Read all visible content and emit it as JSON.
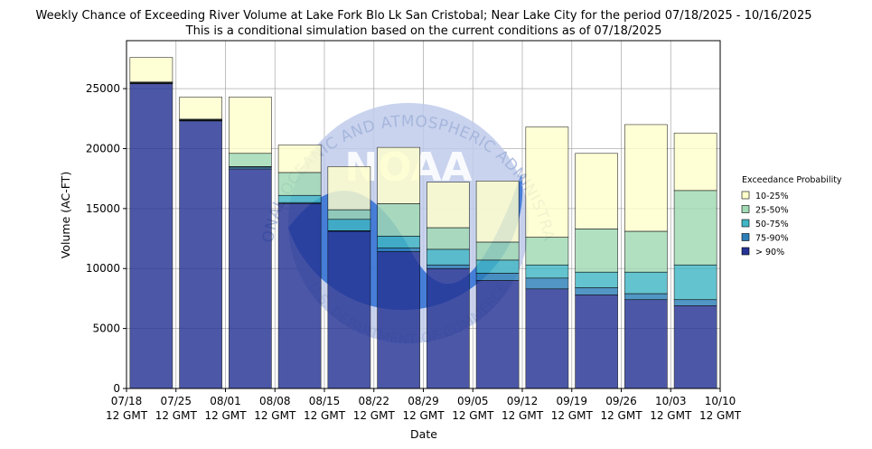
{
  "chart_data": {
    "type": "bar",
    "title": "Weekly Chance of Exceeding River Volume at Lake Fork Blo Lk San Cristobal; Near Lake City for the period 07/18/2025 - 10/16/2025",
    "subtitle": "This is a conditional simulation based on the current conditions as of 07/18/2025",
    "xlabel": "Date",
    "ylabel": "Volume (AC-FT)",
    "ylim": [
      0,
      29000
    ],
    "yticks": [
      0,
      5000,
      10000,
      15000,
      20000,
      25000
    ],
    "xticks": [
      {
        "date": "07/18",
        "time": "12 GMT"
      },
      {
        "date": "07/25",
        "time": "12 GMT"
      },
      {
        "date": "08/01",
        "time": "12 GMT"
      },
      {
        "date": "08/08",
        "time": "12 GMT"
      },
      {
        "date": "08/15",
        "time": "12 GMT"
      },
      {
        "date": "08/22",
        "time": "12 GMT"
      },
      {
        "date": "08/29",
        "time": "12 GMT"
      },
      {
        "date": "09/05",
        "time": "12 GMT"
      },
      {
        "date": "09/12",
        "time": "12 GMT"
      },
      {
        "date": "09/19",
        "time": "12 GMT"
      },
      {
        "date": "09/26",
        "time": "12 GMT"
      },
      {
        "date": "10/03",
        "time": "12 GMT"
      },
      {
        "date": "10/10",
        "time": "12 GMT"
      }
    ],
    "grid": true,
    "legend_placement": "right",
    "legend_title": "Exceedance Probability",
    "series": [
      {
        "name": "> 90%",
        "color": "#253494",
        "values": [
          25400,
          22300,
          18300,
          15400,
          13100,
          11400,
          10000,
          9000,
          8300,
          7800,
          7400,
          6900
        ]
      },
      {
        "name": "75-90%",
        "color": "#2c7fb8",
        "values": [
          25450,
          22350,
          18450,
          15500,
          13150,
          11700,
          10300,
          9600,
          9200,
          8400,
          7900,
          7400
        ]
      },
      {
        "name": "50-75%",
        "color": "#41b6c4",
        "values": [
          25500,
          22400,
          18500,
          16100,
          14100,
          12700,
          11600,
          10700,
          10300,
          9700,
          9700,
          10300
        ]
      },
      {
        "name": "25-50%",
        "color": "#a1dab4",
        "values": [
          25550,
          22450,
          19600,
          18000,
          14900,
          15400,
          13400,
          12200,
          12600,
          13300,
          13100,
          16500
        ]
      },
      {
        "name": "10-25%",
        "color": "#ffffcc",
        "values": [
          27600,
          24300,
          24300,
          20300,
          18500,
          20100,
          17200,
          17300,
          21800,
          19600,
          22000,
          21300
        ]
      }
    ],
    "legend_order": [
      "10-25%",
      "25-50%",
      "50-75%",
      "75-90%",
      "> 90%"
    ],
    "watermark": {
      "text_top": "NATIONAL OCEANIC AND ATMOSPHERIC ADMINISTRATION",
      "text_bottom": "U.S. DEPARTMENT OF COMMERCE",
      "center": "NOAA"
    }
  }
}
